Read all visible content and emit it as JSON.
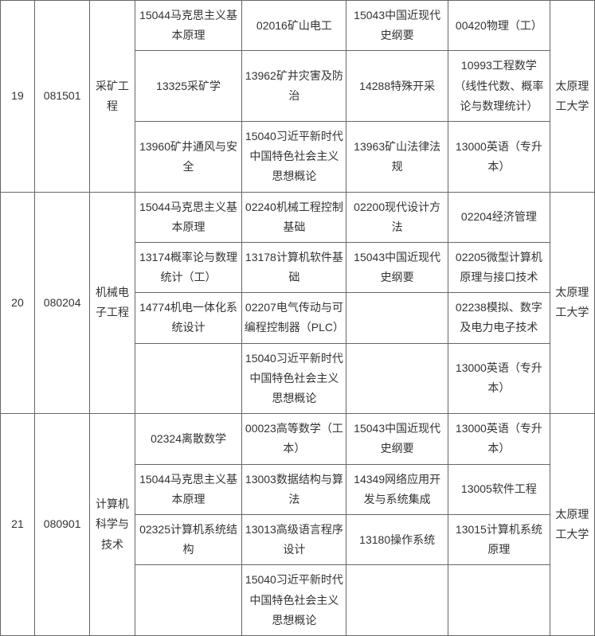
{
  "rows": [
    {
      "seq": "19",
      "code": "081501",
      "major": "采矿工程",
      "school": "太原理工大学",
      "sub": [
        {
          "a": "15044马克思主义基本原理",
          "b": "02016矿山电工",
          "c": "15043中国近现代史纲要",
          "d": "00420物理（工）"
        },
        {
          "a": "13325采矿学",
          "b": "13962矿井灾害及防治",
          "c": "14288特殊开采",
          "d": "10993工程数学（线性代数、概率论与数理统计）"
        },
        {
          "a": "13960矿井通风与安全",
          "b": "15040习近平新时代中国特色社会主义思想概论",
          "c": "13963矿山法律法规",
          "d": "13000英语（专升本）"
        }
      ]
    },
    {
      "seq": "20",
      "code": "080204",
      "major": "机械电子工程",
      "school": "太原理工大学",
      "sub": [
        {
          "a": "15044马克思主义基本原理",
          "b": "02240机械工程控制基础",
          "c": "02200现代设计方法",
          "d": "02204经济管理"
        },
        {
          "a": "13174概率论与数理统计（工）",
          "b": "13178计算机软件基础",
          "c": "15043中国近现代史纲要",
          "d": "02205微型计算机原理与接口技术"
        },
        {
          "a": "14774机电一体化系统设计",
          "b": "02207电气传动与可编程控制器（PLC）",
          "c": "",
          "d": "02238模拟、数字及电力电子技术"
        },
        {
          "a": "",
          "b": "15040习近平新时代中国特色社会主义思想概论",
          "c": "",
          "d": "13000英语（专升本）"
        }
      ]
    },
    {
      "seq": "21",
      "code": "080901",
      "major": "计算机科学与技术",
      "school": "太原理工大学",
      "sub": [
        {
          "a": "02324离散数学",
          "b": "00023高等数学（工本）",
          "c": "15043中国近现代史纲要",
          "d": "13000英语（专升本）"
        },
        {
          "a": "15044马克思主义基本原理",
          "b": "13003数据结构与算法",
          "c": "14349网络应用开发与系统集成",
          "d": "13005软件工程"
        },
        {
          "a": "02325计算机系统结构",
          "b": "13013高级语言程序设计",
          "c": "13180操作系统",
          "d": "13015计算机系统原理"
        },
        {
          "a": "",
          "b": "15040习近平新时代中国特色社会主义思想概论",
          "c": "",
          "d": ""
        }
      ]
    }
  ],
  "style": {
    "background_color": "#ffffff",
    "border_color": "#666666",
    "text_color": "#333333",
    "font_size_pt": 10.5,
    "line_height": 1.8
  }
}
